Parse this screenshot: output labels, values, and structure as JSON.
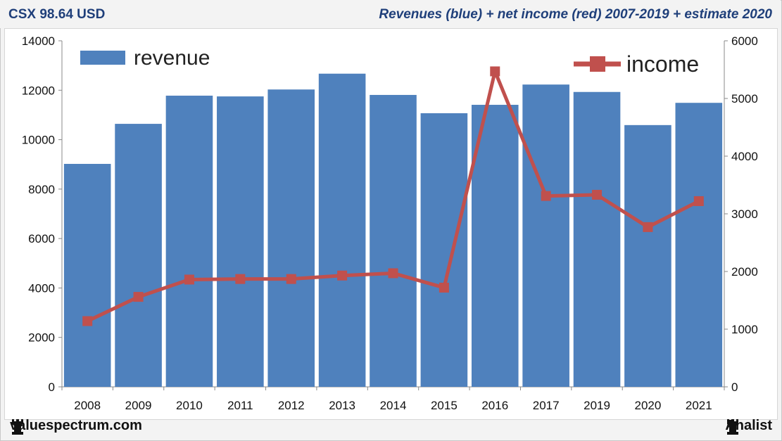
{
  "header": {
    "ticker": "CSX 98.64 USD",
    "title": "Revenues (blue) + net income (red) 2007-2019 + estimate 2020"
  },
  "footer": {
    "site": "valuespectrum.com",
    "brand": "Analist",
    "icon": "rook-icon"
  },
  "colors": {
    "bar": "#4f81bd",
    "line": "#c0504d",
    "title": "#1f3f7a"
  },
  "chart_data": {
    "type": "bar",
    "categories": [
      "2008",
      "2009",
      "2010",
      "2011",
      "2012",
      "2013",
      "2014",
      "2015",
      "2016",
      "2017",
      "2019",
      "2020",
      "2021"
    ],
    "series": [
      {
        "name": "revenue",
        "type": "bar",
        "axis": "left",
        "values": [
          9020,
          10640,
          11780,
          11750,
          12030,
          12670,
          11810,
          11070,
          11410,
          12230,
          11930,
          10590,
          11490
        ]
      },
      {
        "name": "income",
        "type": "line",
        "axis": "right",
        "values": [
          1140,
          1560,
          1860,
          1870,
          1870,
          1930,
          1970,
          1720,
          5470,
          3310,
          3330,
          2770,
          3220
        ]
      }
    ],
    "y_left": {
      "ticks": [
        "0",
        "2000",
        "4000",
        "6000",
        "8000",
        "10000",
        "12000",
        "14000"
      ],
      "ylim": [
        0,
        14000
      ]
    },
    "y_right": {
      "ticks": [
        "0",
        "1000",
        "2000",
        "3000",
        "4000",
        "5000",
        "6000"
      ],
      "ylim": [
        0,
        6000
      ]
    },
    "legend": {
      "placement": "top",
      "entries": [
        "revenue",
        "income"
      ]
    },
    "grid": false
  }
}
